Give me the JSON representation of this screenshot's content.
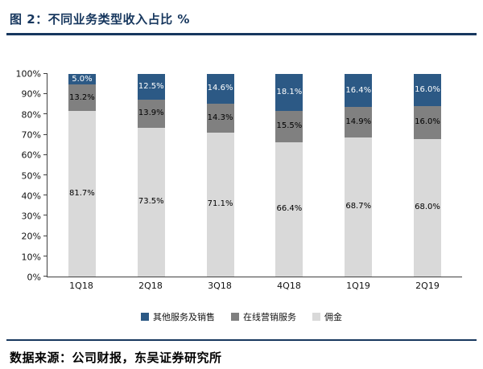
{
  "header": {
    "title": "图 2：不同业务类型收入占比  %"
  },
  "footer": {
    "source": "数据来源：公司财报，东吴证券研究所"
  },
  "colors": {
    "accent": "#17375E",
    "axis": "#404040"
  },
  "chart_data": {
    "type": "bar",
    "stacked": true,
    "percent": true,
    "title": "不同业务类型收入占比 %",
    "categories": [
      "1Q18",
      "2Q18",
      "3Q18",
      "4Q18",
      "1Q19",
      "2Q19"
    ],
    "series": [
      {
        "name": "佣金",
        "color": "#D9D9D9",
        "label_color": "#000000",
        "values": [
          81.7,
          73.5,
          71.1,
          66.4,
          68.7,
          68.0
        ]
      },
      {
        "name": "在线营销服务",
        "color": "#808080",
        "label_color": "#000000",
        "values": [
          13.2,
          13.9,
          14.3,
          15.5,
          14.9,
          16.0
        ]
      },
      {
        "name": "其他服务及销售",
        "color": "#2C5985",
        "label_color": "#FFFFFF",
        "values": [
          5.0,
          12.5,
          14.6,
          18.1,
          16.4,
          16.0
        ]
      }
    ],
    "legend": [
      "其他服务及销售",
      "在线营销服务",
      "佣金"
    ],
    "legend_position": "bottom",
    "ylim": [
      0,
      100
    ],
    "ytick_step": 10,
    "ytick_suffix": "%",
    "grid": false,
    "value_label_format": "one_decimal_percent"
  }
}
